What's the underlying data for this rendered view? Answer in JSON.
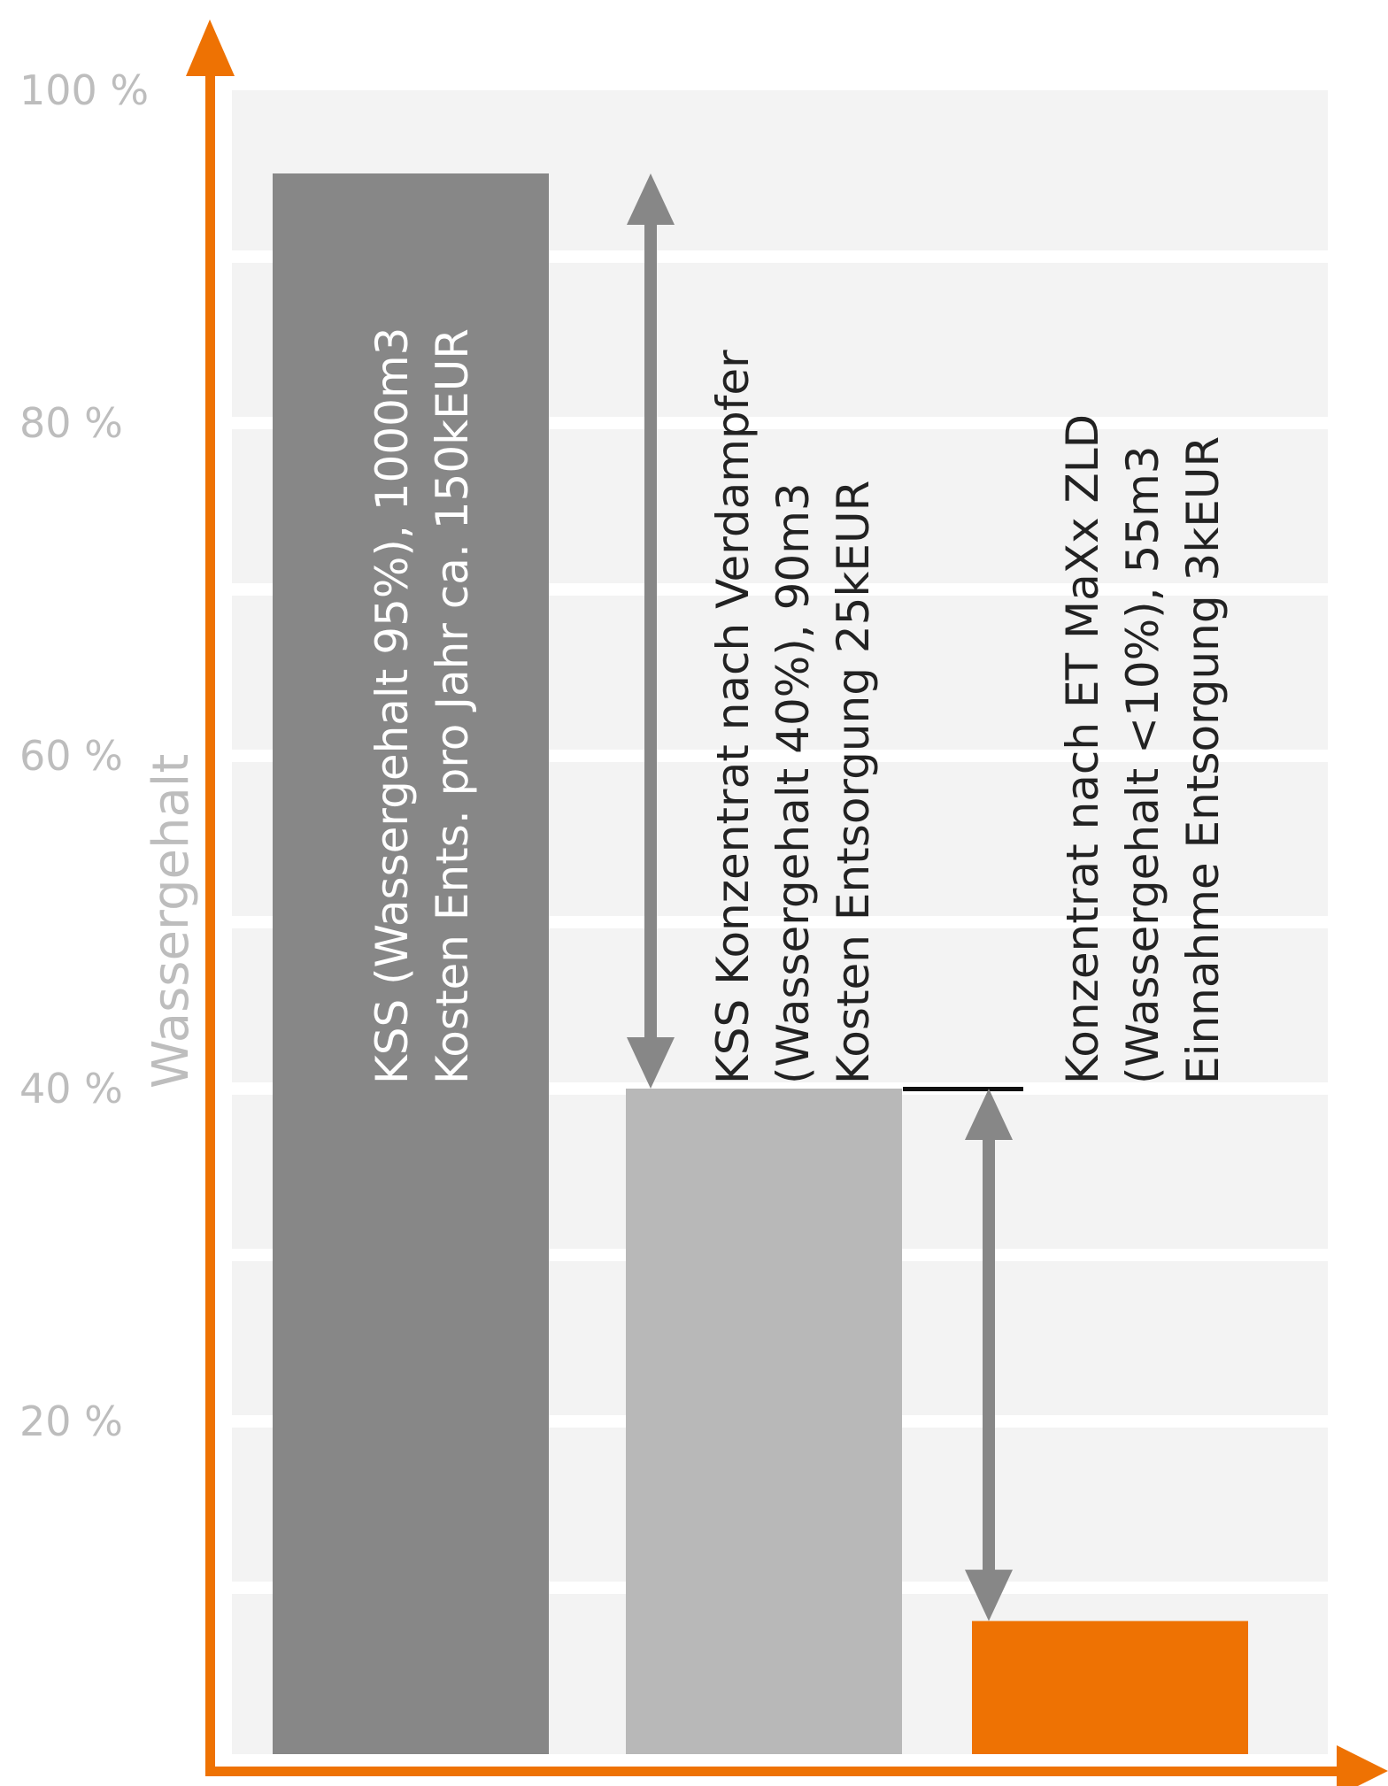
{
  "chart_data": {
    "type": "bar",
    "ylabel": "Wassergehalt",
    "ylim": [
      0,
      100
    ],
    "yticks": [
      "20 %",
      "40 %",
      "60 %",
      "80 %",
      "100 %"
    ],
    "grid": true,
    "categories": [
      "KSS",
      "KSS Konzentrat nach Verdampfer",
      "Konzentrat nach ET MaXx ZLD"
    ],
    "values": [
      95,
      40,
      8
    ],
    "colors": [
      "#878787",
      "#b8b8b8",
      "#ee7203"
    ],
    "bar_labels": [
      [
        "KSS (Wassergehalt 95%), 1000m3",
        "Kosten Ents. pro Jahr ca. 150kEUR"
      ],
      [
        "KSS Konzentrat nach Verdampfer",
        "(Wassergehalt 40%), 90m3",
        "Kosten Entsorgung 25kEUR"
      ],
      [
        "Konzentrat nach ET MaXx ZLD",
        "(Wassergehalt <10%), 55m3",
        "Einnahme Entsorgung 3kEUR"
      ]
    ],
    "annotations": [
      {
        "type": "double-arrow",
        "from": 95,
        "to": 40
      },
      {
        "type": "double-arrow",
        "from": 40,
        "to": 8
      }
    ],
    "axis_color": "#ee7203",
    "arrow_color": "#878787",
    "grid_background": "#f3f3f3"
  }
}
